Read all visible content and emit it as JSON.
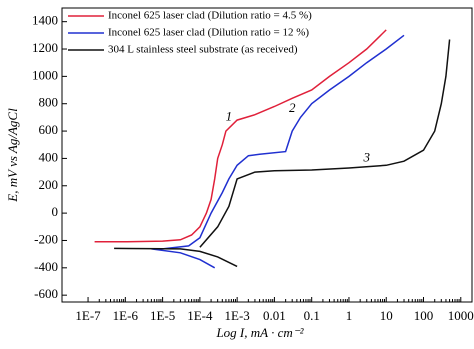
{
  "chart_data": {
    "type": "line",
    "x_label": "Log I, mA · cm⁻²",
    "y_label": "E, mV vs Ag/AgCl",
    "xscale": "log",
    "xlim": [
      2e-08,
      2000
    ],
    "ylim": [
      -650,
      1500
    ],
    "xticks": [
      {
        "value": 1e-07,
        "label": "1E-7"
      },
      {
        "value": 1e-06,
        "label": "1E-6"
      },
      {
        "value": 1e-05,
        "label": "1E-5"
      },
      {
        "value": 0.0001,
        "label": "1E-4"
      },
      {
        "value": 0.001,
        "label": "1E-3"
      },
      0.01,
      0.1,
      1,
      10,
      100,
      1000
    ],
    "yticks": [
      -600,
      -400,
      -200,
      0,
      200,
      400,
      600,
      800,
      1000,
      1200,
      1400
    ],
    "legend": "upper left",
    "series": [
      {
        "name": "Inconel 625 laser clad (Dilution ratio = 4.5 %)",
        "color": "#e0203a",
        "x": [
          1.5e-07,
          1e-06,
          1e-05,
          3e-05,
          6e-05,
          0.0001,
          0.00015,
          0.0002,
          0.00025,
          0.0003,
          0.0004,
          0.0005,
          0.001,
          0.003,
          0.01,
          0.03,
          0.1,
          0.3,
          1,
          3,
          10
        ],
        "values": [
          -210,
          -210,
          -205,
          -195,
          -160,
          -100,
          0,
          100,
          250,
          400,
          500,
          600,
          680,
          720,
          780,
          840,
          900,
          1000,
          1100,
          1200,
          1340
        ]
      },
      {
        "name": "Inconel 625 laser clad (Dilution ratio = 12 %)",
        "color": "#2030d0",
        "x": [
          0.00025,
          0.0001,
          3e-05,
          5e-06,
          null,
          1e-05,
          5e-05,
          0.0001,
          0.0002,
          0.0004,
          0.0006,
          0.001,
          0.002,
          0.004,
          0.02,
          0.03,
          0.05,
          0.1,
          0.3,
          1,
          3,
          10,
          30
        ],
        "values": [
          -400,
          -340,
          -290,
          -262,
          null,
          -262,
          -240,
          -180,
          0,
          150,
          250,
          350,
          420,
          430,
          450,
          600,
          700,
          800,
          900,
          1000,
          1100,
          1200,
          1300
        ]
      },
      {
        "name": "304 L stainless steel substrate (as received)",
        "color": "#111111",
        "x": [
          5e-07,
          3e-05,
          0.0001,
          0.0003,
          0.001,
          null,
          0.0001,
          0.0003,
          0.0006,
          0.001,
          0.003,
          0.01,
          0.1,
          1,
          10,
          30,
          100,
          200,
          300,
          400,
          500
        ],
        "values": [
          -258,
          -262,
          -280,
          -320,
          -390,
          null,
          -250,
          -100,
          50,
          250,
          300,
          310,
          315,
          330,
          350,
          380,
          460,
          600,
          800,
          1000,
          1270
        ]
      }
    ],
    "annotations": [
      {
        "text": "1",
        "x": 0.0006,
        "y": 700
      },
      {
        "text": "2",
        "x": 0.03,
        "y": 760
      },
      {
        "text": "3",
        "x": 3,
        "y": 400
      }
    ]
  }
}
